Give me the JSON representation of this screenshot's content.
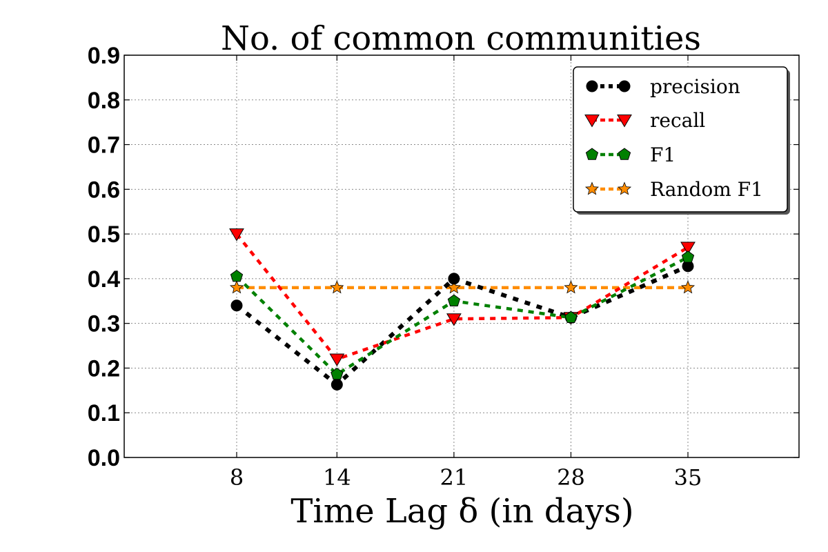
{
  "chart_data": {
    "type": "line",
    "title": "No. of common communities",
    "xlabel": "Time Lag δ (in days)",
    "ylabel": "",
    "categories": [
      "8",
      "14",
      "21",
      "28",
      "35"
    ],
    "x": [
      8,
      14,
      21,
      28,
      35
    ],
    "xlim": [
      8,
      35
    ],
    "ylim": [
      0.0,
      0.9
    ],
    "yticks": [
      "0.0",
      "0.1",
      "0.2",
      "0.3",
      "0.4",
      "0.5",
      "0.6",
      "0.7",
      "0.8",
      "0.9"
    ],
    "grid": true,
    "legend_position": "top-right",
    "series": [
      {
        "name": "precision",
        "values": [
          0.34,
          0.163,
          0.4,
          0.313,
          0.428
        ],
        "color": "#000000",
        "marker": "circle"
      },
      {
        "name": "recall",
        "values": [
          0.5,
          0.22,
          0.31,
          0.313,
          0.47
        ],
        "color": "#ff0000",
        "marker": "triangle-down"
      },
      {
        "name": "F1",
        "values": [
          0.405,
          0.186,
          0.35,
          0.313,
          0.448
        ],
        "color": "#008000",
        "marker": "pentagon"
      },
      {
        "name": "Random F1",
        "values": [
          0.38,
          0.38,
          0.38,
          0.38,
          0.38
        ],
        "color": "#ff8c00",
        "marker": "star"
      }
    ]
  }
}
